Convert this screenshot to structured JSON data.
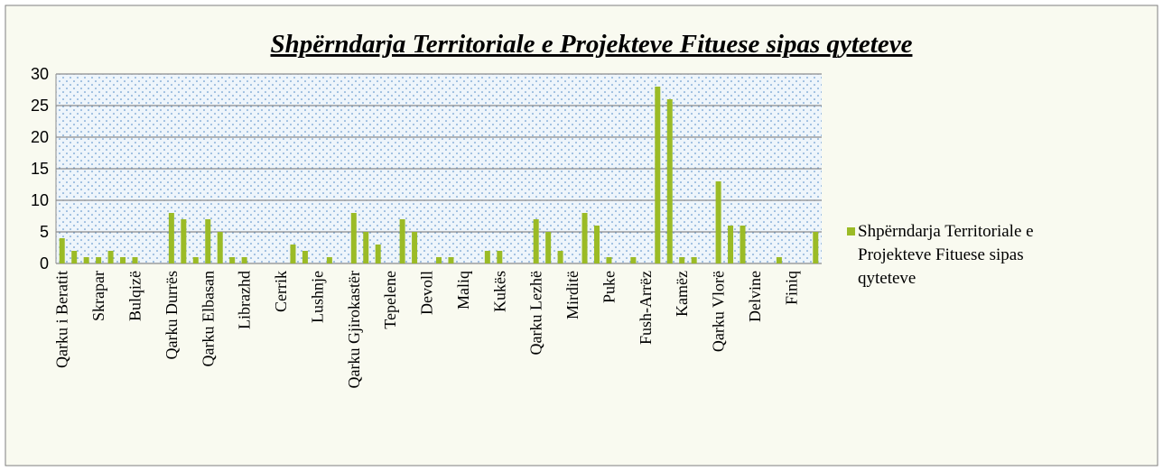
{
  "chart_data": {
    "type": "bar",
    "title": "Shpërndarja Territoriale e Projekteve Fituese sipas qyteteve",
    "categories": [
      "Qarku i Beratit",
      null,
      null,
      "Skrapar",
      null,
      null,
      "Bulqizë",
      null,
      null,
      "Qarku Durrës",
      null,
      null,
      "Qarku Elbasan",
      null,
      null,
      "Librazhd",
      null,
      null,
      "Cerrik",
      null,
      null,
      "Lushnje",
      null,
      null,
      "Qarku Gjirokastër",
      null,
      null,
      "Tepelene",
      null,
      null,
      "Devoll",
      null,
      null,
      "Maliq",
      null,
      null,
      "Kukës",
      null,
      null,
      "Qarku Lezhë",
      null,
      null,
      "Mirditë",
      null,
      null,
      "Puke",
      null,
      null,
      "Fush-Arrëz",
      null,
      null,
      "Kamëz",
      null,
      null,
      "Qarku Vlorë",
      null,
      null,
      "Delvine",
      null,
      null,
      "Finiq",
      null,
      null
    ],
    "series": [
      {
        "name": "Shpërndarja Territoriale e Projekteve Fituese sipas qyteteve",
        "color": "#9bbb26",
        "values": [
          4,
          2,
          1,
          1,
          2,
          1,
          1,
          0,
          0,
          8,
          7,
          1,
          7,
          5,
          1,
          1,
          0,
          0,
          0,
          3,
          2,
          0,
          1,
          0,
          8,
          5,
          3,
          0,
          7,
          5,
          0,
          1,
          1,
          0,
          0,
          2,
          2,
          0,
          0,
          7,
          5,
          2,
          0,
          8,
          6,
          1,
          0,
          1,
          0,
          28,
          26,
          1,
          1,
          0,
          13,
          6,
          6,
          0,
          0,
          1,
          0,
          0,
          5
        ]
      }
    ],
    "ylim": [
      0,
      30
    ],
    "yticks": [
      0,
      5,
      10,
      15,
      20,
      25,
      30
    ],
    "grid": true,
    "legend": "right"
  }
}
